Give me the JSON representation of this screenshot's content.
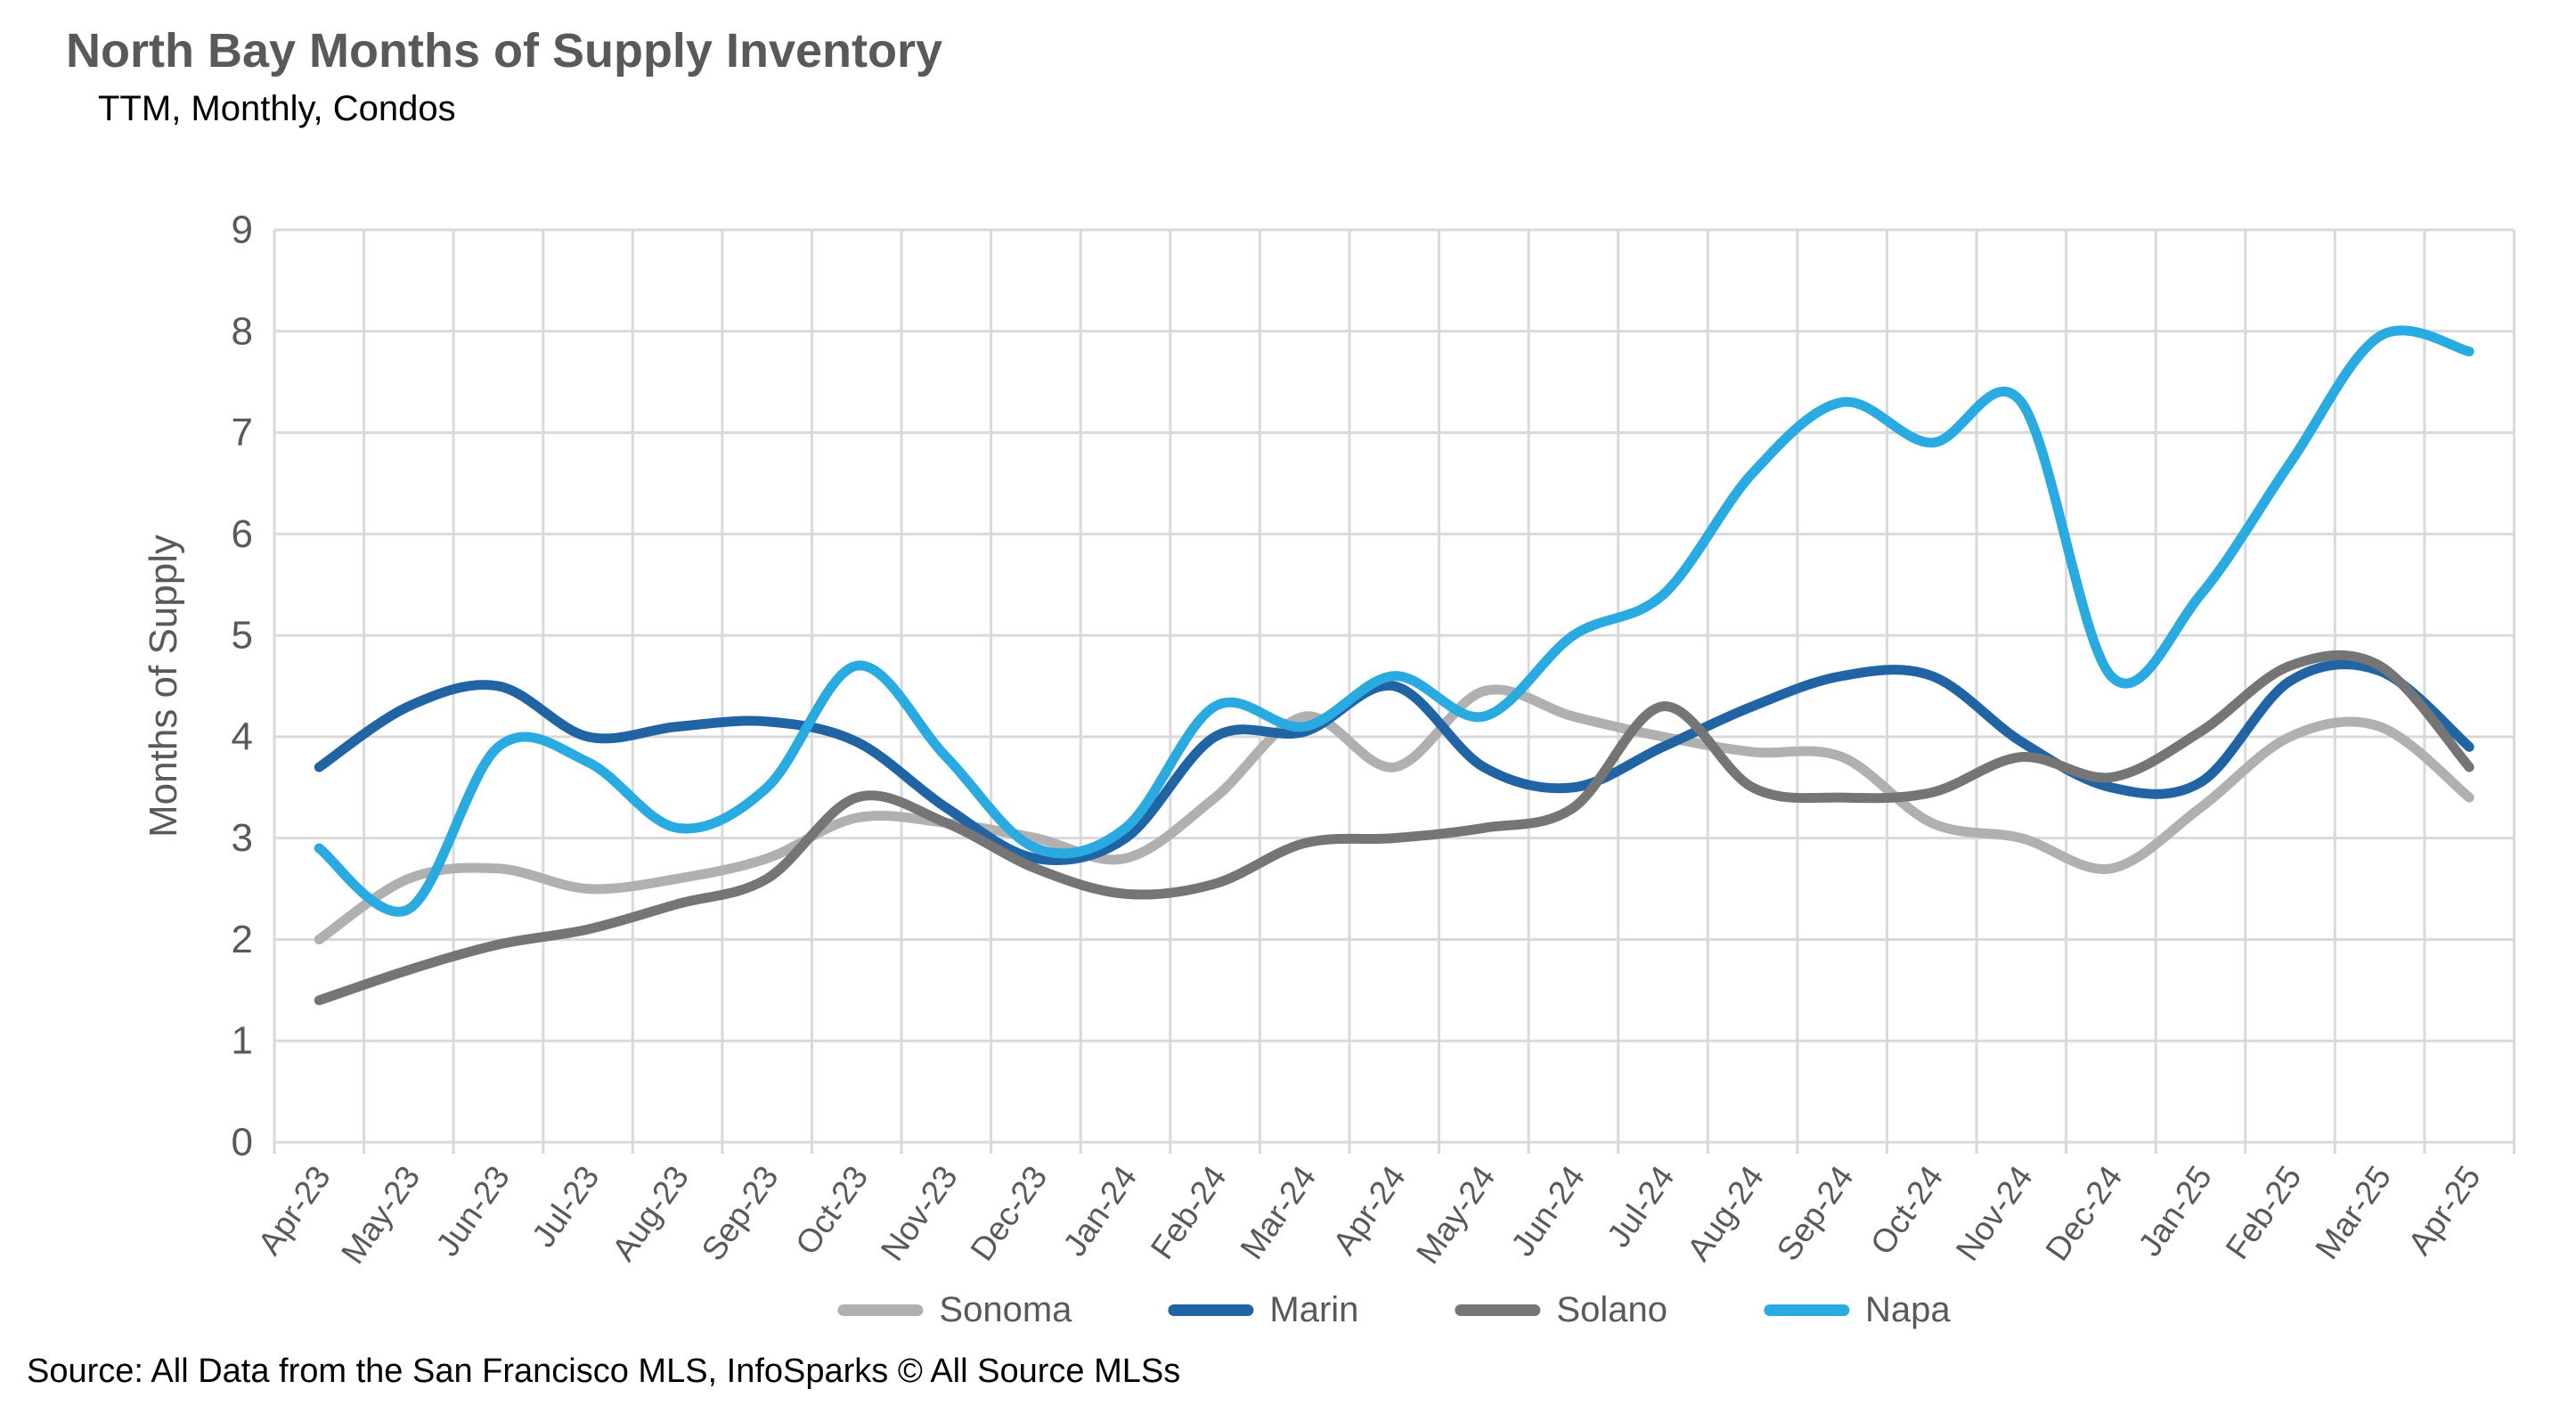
{
  "header": {
    "title": "North Bay Months of Supply Inventory",
    "subtitle": "TTM, Monthly, Condos"
  },
  "footer": {
    "source": "Source: All Data from the San Francisco MLS, InfoSparks © All Source MLSs"
  },
  "colors": {
    "background": "#FFFFFF",
    "grid": "#D9D9D9",
    "axis_text": "#595959",
    "title_text": "#595959",
    "body_text": "#000000"
  },
  "chart_data": {
    "type": "line",
    "title": "North Bay Months of Supply Inventory",
    "subtitle": "TTM, Monthly, Condos",
    "xlabel": "",
    "ylabel": "Months of Supply",
    "ylim": [
      0,
      9
    ],
    "ytick_interval": 1,
    "grid": true,
    "smooth": true,
    "legend_position": "bottom",
    "categories": [
      "Apr-23",
      "May-23",
      "Jun-23",
      "Jul-23",
      "Aug-23",
      "Sep-23",
      "Oct-23",
      "Nov-23",
      "Dec-23",
      "Jan-24",
      "Feb-24",
      "Mar-24",
      "Apr-24",
      "May-24",
      "Jun-24",
      "Jul-24",
      "Aug-24",
      "Sep-24",
      "Oct-24",
      "Nov-24",
      "Dec-24",
      "Jan-25",
      "Feb-25",
      "Mar-25",
      "Apr-25"
    ],
    "series": [
      {
        "name": "Sonoma",
        "color": "#B0B0B0",
        "values": [
          2.0,
          2.6,
          2.7,
          2.5,
          2.6,
          2.8,
          3.2,
          3.15,
          3.0,
          2.8,
          3.4,
          4.2,
          3.7,
          4.45,
          4.2,
          4.0,
          3.85,
          3.8,
          3.15,
          3.0,
          2.7,
          3.3,
          4.0,
          4.1,
          3.4
        ]
      },
      {
        "name": "Marin",
        "color": "#2164A4",
        "values": [
          3.7,
          4.3,
          4.5,
          4.0,
          4.1,
          4.15,
          3.95,
          3.3,
          2.8,
          3.0,
          4.0,
          4.05,
          4.5,
          3.7,
          3.5,
          3.9,
          4.3,
          4.6,
          4.6,
          3.95,
          3.5,
          3.55,
          4.55,
          4.65,
          3.9
        ]
      },
      {
        "name": "Solano",
        "color": "#757575",
        "values": [
          1.4,
          1.7,
          1.95,
          2.1,
          2.35,
          2.6,
          3.4,
          3.15,
          2.7,
          2.45,
          2.55,
          2.95,
          3.0,
          3.1,
          3.3,
          4.3,
          3.5,
          3.4,
          3.45,
          3.8,
          3.6,
          4.05,
          4.7,
          4.7,
          3.7
        ]
      },
      {
        "name": "Napa",
        "color": "#29ABE2",
        "values": [
          2.9,
          2.3,
          3.9,
          3.75,
          3.1,
          3.5,
          4.7,
          3.8,
          2.9,
          3.1,
          4.3,
          4.1,
          4.6,
          4.2,
          5.0,
          5.4,
          6.6,
          7.3,
          6.9,
          7.3,
          4.6,
          5.4,
          6.7,
          7.95,
          7.8
        ]
      }
    ]
  }
}
